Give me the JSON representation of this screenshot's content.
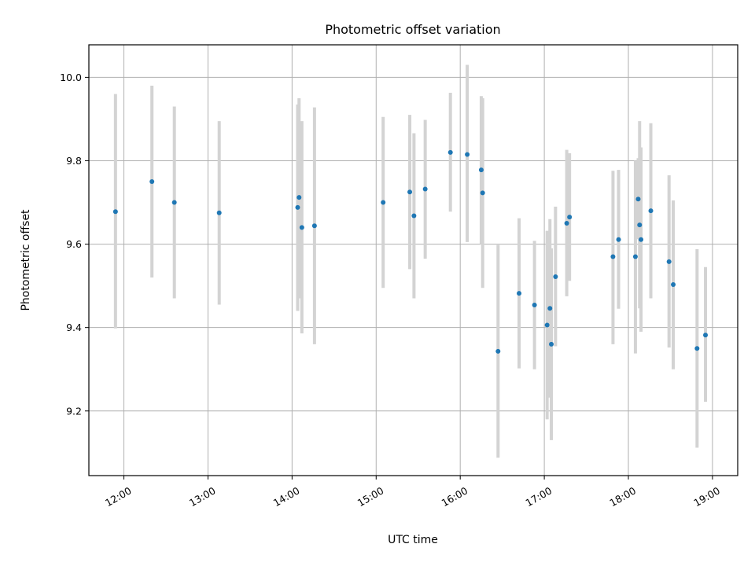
{
  "chart_data": {
    "type": "scatter",
    "title": "Photometric offset variation",
    "xlabel": "UTC time",
    "ylabel": "Photometric offset",
    "xlim": [
      "11:35",
      "19:18"
    ],
    "ylim": [
      9.045,
      10.078
    ],
    "x_ticks": [
      "12:00",
      "13:00",
      "14:00",
      "15:00",
      "16:00",
      "17:00",
      "18:00",
      "19:00"
    ],
    "y_ticks": [
      "9.2",
      "9.4",
      "9.6",
      "9.8",
      "10.0"
    ],
    "grid": true,
    "marker_color": "#1f77b4",
    "errorbar_color": "#d3d3d3",
    "points": [
      {
        "time": "11:54",
        "y": 9.678,
        "ylo": 9.398,
        "yhi": 9.96
      },
      {
        "time": "12:20",
        "y": 9.75,
        "ylo": 9.52,
        "yhi": 9.98
      },
      {
        "time": "12:36",
        "y": 9.7,
        "ylo": 9.47,
        "yhi": 9.93
      },
      {
        "time": "13:08",
        "y": 9.675,
        "ylo": 9.455,
        "yhi": 9.895
      },
      {
        "time": "14:04",
        "y": 9.688,
        "ylo": 9.44,
        "yhi": 9.935
      },
      {
        "time": "14:05",
        "y": 9.712,
        "ylo": 9.47,
        "yhi": 9.95
      },
      {
        "time": "14:07",
        "y": 9.64,
        "ylo": 9.386,
        "yhi": 9.895
      },
      {
        "time": "14:16",
        "y": 9.644,
        "ylo": 9.36,
        "yhi": 9.928
      },
      {
        "time": "15:05",
        "y": 9.7,
        "ylo": 9.495,
        "yhi": 9.905
      },
      {
        "time": "15:24",
        "y": 9.725,
        "ylo": 9.54,
        "yhi": 9.91
      },
      {
        "time": "15:27",
        "y": 9.668,
        "ylo": 9.47,
        "yhi": 9.866
      },
      {
        "time": "15:35",
        "y": 9.732,
        "ylo": 9.565,
        "yhi": 9.898
      },
      {
        "time": "15:53",
        "y": 9.82,
        "ylo": 9.678,
        "yhi": 9.963
      },
      {
        "time": "16:05",
        "y": 9.815,
        "ylo": 9.605,
        "yhi": 10.03
      },
      {
        "time": "16:15",
        "y": 9.778,
        "ylo": 9.6,
        "yhi": 9.955
      },
      {
        "time": "16:16",
        "y": 9.723,
        "ylo": 9.495,
        "yhi": 9.95
      },
      {
        "time": "16:27",
        "y": 9.343,
        "ylo": 9.088,
        "yhi": 9.598
      },
      {
        "time": "16:42",
        "y": 9.482,
        "ylo": 9.302,
        "yhi": 9.662
      },
      {
        "time": "16:53",
        "y": 9.454,
        "ylo": 9.3,
        "yhi": 9.608
      },
      {
        "time": "17:02",
        "y": 9.406,
        "ylo": 9.18,
        "yhi": 9.632
      },
      {
        "time": "17:04",
        "y": 9.446,
        "ylo": 9.232,
        "yhi": 9.66
      },
      {
        "time": "17:05",
        "y": 9.36,
        "ylo": 9.13,
        "yhi": 9.59
      },
      {
        "time": "17:08",
        "y": 9.522,
        "ylo": 9.355,
        "yhi": 9.69
      },
      {
        "time": "17:16",
        "y": 9.65,
        "ylo": 9.475,
        "yhi": 9.826
      },
      {
        "time": "17:18",
        "y": 9.665,
        "ylo": 9.512,
        "yhi": 9.818
      },
      {
        "time": "17:49",
        "y": 9.57,
        "ylo": 9.36,
        "yhi": 9.776
      },
      {
        "time": "17:53",
        "y": 9.611,
        "ylo": 9.445,
        "yhi": 9.778
      },
      {
        "time": "18:05",
        "y": 9.57,
        "ylo": 9.338,
        "yhi": 9.8
      },
      {
        "time": "18:07",
        "y": 9.708,
        "ylo": 9.612,
        "yhi": 9.806
      },
      {
        "time": "18:08",
        "y": 9.646,
        "ylo": 9.446,
        "yhi": 9.895
      },
      {
        "time": "18:09",
        "y": 9.611,
        "ylo": 9.39,
        "yhi": 9.832
      },
      {
        "time": "18:16",
        "y": 9.68,
        "ylo": 9.47,
        "yhi": 9.89
      },
      {
        "time": "18:29",
        "y": 9.558,
        "ylo": 9.352,
        "yhi": 9.765
      },
      {
        "time": "18:32",
        "y": 9.503,
        "ylo": 9.3,
        "yhi": 9.705
      },
      {
        "time": "18:49",
        "y": 9.35,
        "ylo": 9.112,
        "yhi": 9.588
      },
      {
        "time": "18:55",
        "y": 9.382,
        "ylo": 9.222,
        "yhi": 9.545
      }
    ]
  }
}
